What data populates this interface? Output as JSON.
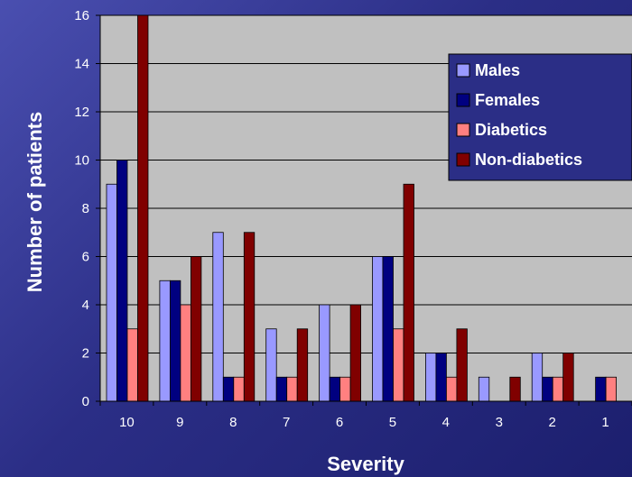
{
  "chart_data": {
    "type": "bar",
    "title": "",
    "xlabel": "Severity",
    "ylabel": "Number of patients",
    "ylim": [
      0,
      16
    ],
    "yticks": [
      0,
      2,
      4,
      6,
      8,
      10,
      12,
      14,
      16
    ],
    "categories": [
      "10",
      "9",
      "8",
      "7",
      "6",
      "5",
      "4",
      "3",
      "2",
      "1"
    ],
    "grid": true,
    "legend_position": "top-right",
    "series": [
      {
        "name": "Males",
        "color": "#9999ff",
        "values": [
          9,
          5,
          7,
          3,
          4,
          6,
          2,
          1,
          2,
          0
        ]
      },
      {
        "name": "Females",
        "color": "#000080",
        "values": [
          10,
          5,
          1,
          1,
          1,
          6,
          2,
          0,
          1,
          1
        ]
      },
      {
        "name": "Diabetics",
        "color": "#ff8080",
        "values": [
          3,
          4,
          1,
          1,
          1,
          3,
          1,
          0,
          1,
          1
        ]
      },
      {
        "name": "Non-diabetics",
        "color": "#800000",
        "values": [
          16,
          6,
          7,
          3,
          4,
          9,
          3,
          1,
          2,
          0
        ]
      }
    ],
    "plot_background": "#c0c0c0"
  }
}
